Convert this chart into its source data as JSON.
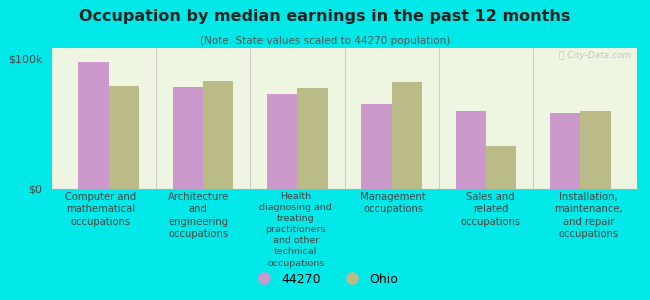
{
  "title": "Occupation by median earnings in the past 12 months",
  "subtitle": "(Note: State values scaled to 44270 population)",
  "background_color": "#00e8e8",
  "plot_bg_color": "#eef5e0",
  "categories": [
    "Computer and\nmathematical\noccupations",
    "Architecture\nand\nengineering\noccupations",
    "Health\ndiagnosing and\ntreating\npractitioners\nand other\ntechnical\noccupations",
    "Management\noccupations",
    "Sales and\nrelated\noccupations",
    "Installation,\nmaintenance,\nand repair\noccupations"
  ],
  "values_44270": [
    97000,
    78000,
    73000,
    65000,
    60000,
    58000
  ],
  "values_ohio": [
    79000,
    83000,
    77000,
    82000,
    33000,
    60000
  ],
  "color_44270": "#cc99cc",
  "color_ohio": "#bbbb88",
  "ylim": [
    0,
    108000
  ],
  "yticks": [
    0,
    100000
  ],
  "ytick_labels": [
    "$0",
    "$100k"
  ],
  "legend_labels": [
    "44270",
    "Ohio"
  ],
  "watermark": "Ⓜ City-Data.com"
}
